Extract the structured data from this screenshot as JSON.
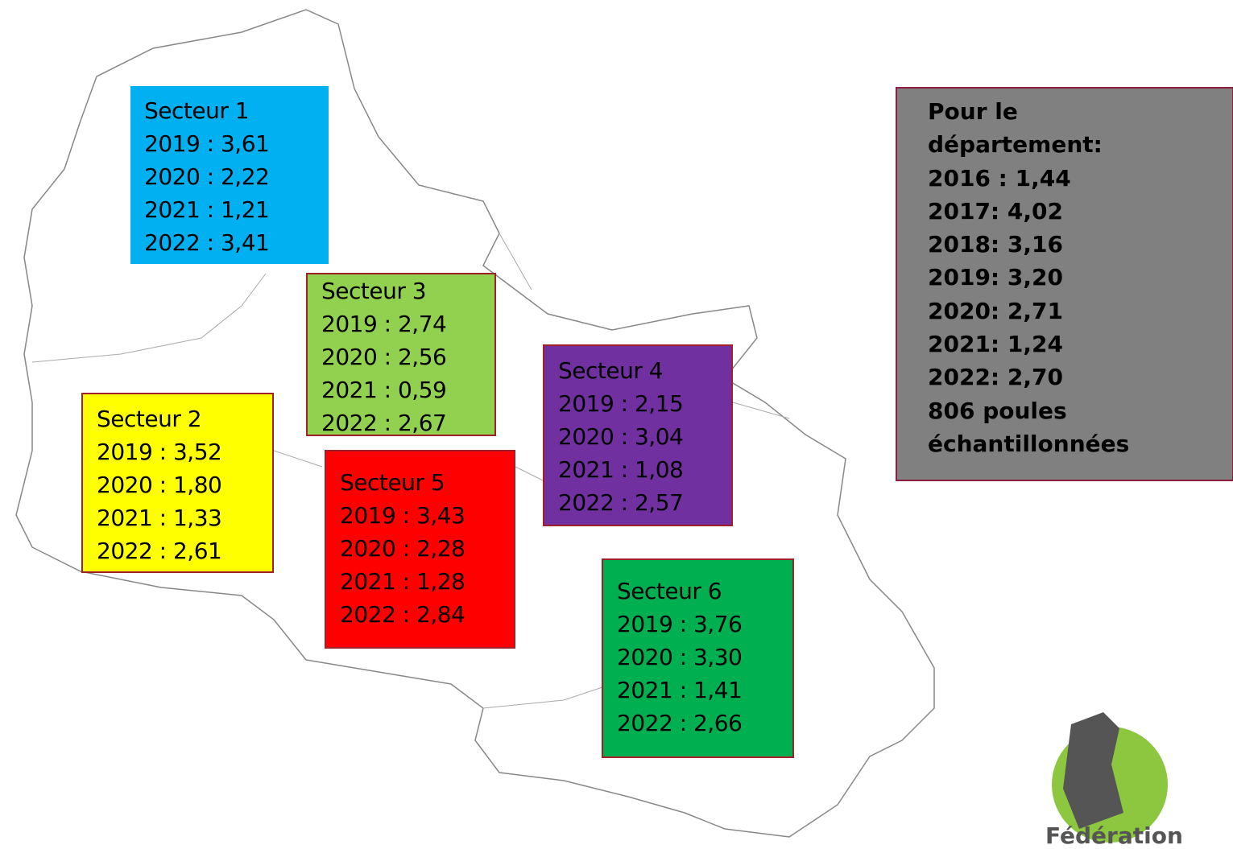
{
  "sectors": [
    {
      "title": "Secteur 1",
      "lines": [
        "2019 : 3,61",
        "2020 : 2,22",
        "2021 : 1,21",
        "2022 : 3,41"
      ]
    },
    {
      "title": "Secteur 2",
      "lines": [
        "2019 : 3,52",
        "2020 : 1,80",
        "2021 : 1,33",
        "2022 : 2,61"
      ]
    },
    {
      "title": "Secteur 3",
      "lines": [
        "2019 : 2,74",
        "2020 : 2,56",
        "2021 : 0,59",
        "2022 : 2,67"
      ]
    },
    {
      "title": "Secteur 4",
      "lines": [
        "2019 : 2,15",
        "2020 : 3,04",
        "2021 : 1,08",
        "2022 : 2,57"
      ]
    },
    {
      "title": "Secteur 5",
      "lines": [
        "2019 : 3,43",
        "2020 : 2,28",
        "2021 : 1,28",
        "2022 : 2,84"
      ]
    },
    {
      "title": "Secteur 6",
      "lines": [
        "2019 : 3,76",
        "2020 : 3,30",
        "2021 : 1,41",
        "2022 : 2,66"
      ]
    }
  ],
  "department": {
    "lines": [
      "Pour le",
      "département:",
      "2016 : 1,44",
      "2017: 4,02",
      "2018: 3,16",
      "2019: 3,20",
      "2020: 2,71",
      "2021: 1,24",
      "2022: 2,70",
      "806 poules",
      "échantillonnées"
    ]
  },
  "logo": {
    "text": "Fédération"
  }
}
